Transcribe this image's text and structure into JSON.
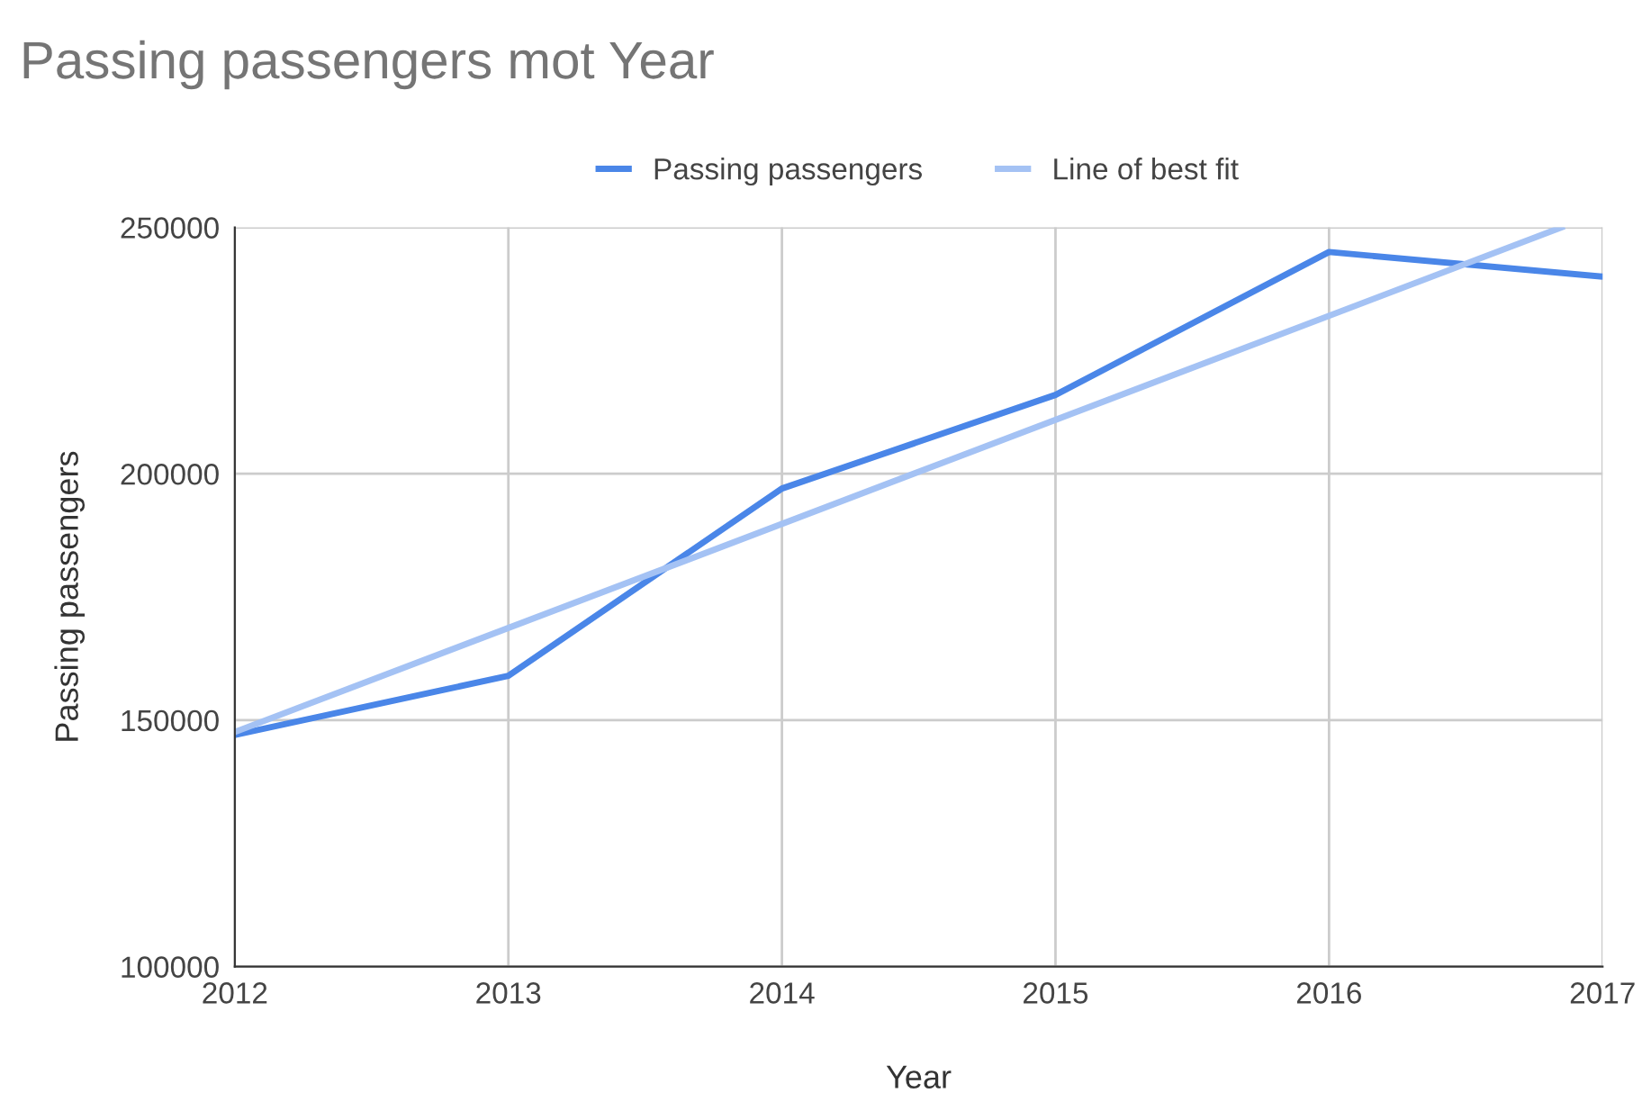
{
  "chart_data": {
    "type": "line",
    "title": "Passing passengers mot Year",
    "xlabel": "Year",
    "ylabel": "Passing passengers",
    "x": [
      2012,
      2013,
      2014,
      2015,
      2016,
      2017
    ],
    "series": [
      {
        "name": "Passing passengers",
        "color": "#4a86e8",
        "values": [
          147000,
          159000,
          197000,
          216000,
          245000,
          240000
        ]
      },
      {
        "name": "Line of best fit",
        "color": "#a4c2f4",
        "x": [
          2012,
          2016.85
        ],
        "values": [
          147600,
          250000
        ]
      }
    ],
    "xlim": [
      2012,
      2017
    ],
    "xticks": [
      2012,
      2013,
      2014,
      2015,
      2016,
      2017
    ],
    "ylim": [
      100000,
      250000
    ],
    "yticks": [
      100000,
      150000,
      200000,
      250000
    ],
    "grid": true,
    "legend": "top",
    "marker": "none",
    "line_style": "solid"
  }
}
